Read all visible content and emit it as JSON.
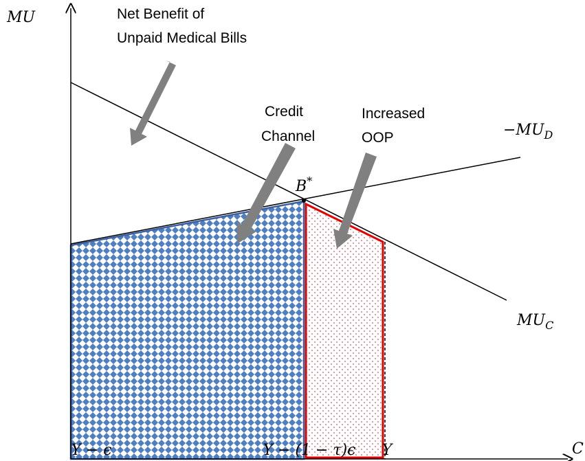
{
  "axis_labels": {
    "y": "MU",
    "x": "C"
  },
  "annotations": {
    "net_benefit": [
      "Net Benefit of",
      "Unpaid Medical Bills"
    ],
    "credit_channel": [
      "Credit",
      "Channel"
    ],
    "increased_oop": [
      "Increased",
      "OOP"
    ]
  },
  "curves": {
    "mu_d": {
      "main": "−MU",
      "sub": "D"
    },
    "mu_c": {
      "main": "MU",
      "sub": "C"
    },
    "b_star": {
      "main": "B",
      "sup": "*"
    }
  },
  "x_points": [
    "Y − ϵ",
    "Y − (1 − τ)ϵ",
    "Y"
  ]
}
